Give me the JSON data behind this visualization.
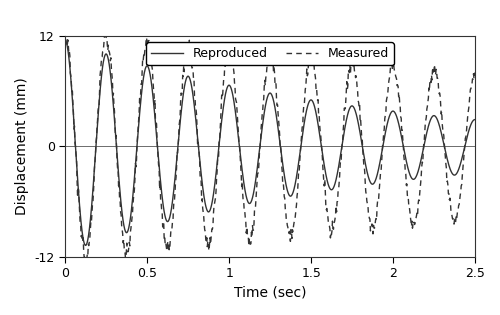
{
  "title": "",
  "xlabel": "Time (sec)",
  "ylabel": "Displacement (mm)",
  "xlim": [
    0,
    2.5
  ],
  "ylim": [
    -12,
    12
  ],
  "xticks": [
    0,
    0.5,
    1.0,
    1.5,
    2.0,
    2.5
  ],
  "yticks": [
    -12,
    0,
    12
  ],
  "reproduced_color": "#333333",
  "measured_color": "#333333",
  "background_color": "#ffffff",
  "freq": 4.0,
  "t_end": 2.5,
  "initial_amplitude": 11.5,
  "decay_rate_reproduced": 0.55,
  "decay_rate_measured": 0.18,
  "phase_shift_reproduced": 1.57,
  "phase_shift_measured": 1.57,
  "noise_std": 0.5,
  "measured_amplitude_boost": 1.08,
  "figsize": [
    5.0,
    3.15
  ],
  "dpi": 100
}
